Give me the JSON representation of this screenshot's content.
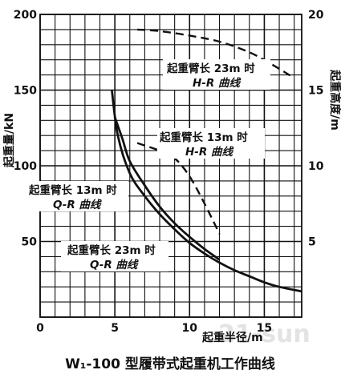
{
  "chart_data": {
    "type": "line",
    "title": "W₁-100 型履带式起重机工作曲线",
    "xlabel": "起重半径/m",
    "ylabel_left": "起重量/kN",
    "ylabel_right": "起重高度/m",
    "xlim": [
      0,
      17.5
    ],
    "ylim_left": [
      0,
      200
    ],
    "ylim_right": [
      0,
      20
    ],
    "x_ticks": [
      "0",
      "5",
      "10",
      "15"
    ],
    "y_left_ticks": [
      "50",
      "100",
      "150",
      "200"
    ],
    "y_right_ticks": [
      "5",
      "10",
      "15",
      "20"
    ],
    "grid": true,
    "series": [
      {
        "axis": "left",
        "style": "solid",
        "x": [
          4.8,
          5.2,
          6.0,
          7.0,
          8.0,
          9.0,
          10.0,
          11.0,
          12.0,
          13.0,
          14.0,
          15.0,
          16.0,
          17.5
        ],
        "y": [
          150,
          120,
          95,
          80,
          68,
          58,
          49,
          42,
          36,
          31,
          27,
          23,
          20,
          17
        ]
      },
      {
        "axis": "left",
        "style": "solid",
        "x": [
          5.0,
          5.5,
          6.0,
          7.0,
          8.0,
          9.0,
          10.0,
          11.0,
          12.0
        ],
        "y": [
          132,
          118,
          103,
          87,
          73,
          62,
          53,
          45,
          38
        ]
      },
      {
        "axis": "right",
        "style": "dashed",
        "x": [
          6.5,
          8.0,
          9.0,
          10.0,
          11.0,
          12.0
        ],
        "y": [
          11.5,
          11.0,
          10.5,
          9.3,
          7.5,
          5.5
        ]
      },
      {
        "axis": "right",
        "style": "dashed",
        "x": [
          6.5,
          8.0,
          10.0,
          12.0,
          14.0,
          15.5,
          17.0
        ],
        "y": [
          19.0,
          18.9,
          18.6,
          18.2,
          17.5,
          16.7,
          15.8
        ]
      }
    ],
    "annotations": [
      {
        "line1": "起重臂长 23m 时",
        "line2": "H-R 曲线"
      },
      {
        "line1": "起重臂长 13m 时",
        "line2": "H-R 曲线"
      },
      {
        "line1": "起重臂长 13m 时",
        "line2": "Q-R 曲线"
      },
      {
        "line1": "起重臂长 23m 时",
        "line2": "Q-R 曲线"
      }
    ]
  },
  "watermark": "21-sun"
}
